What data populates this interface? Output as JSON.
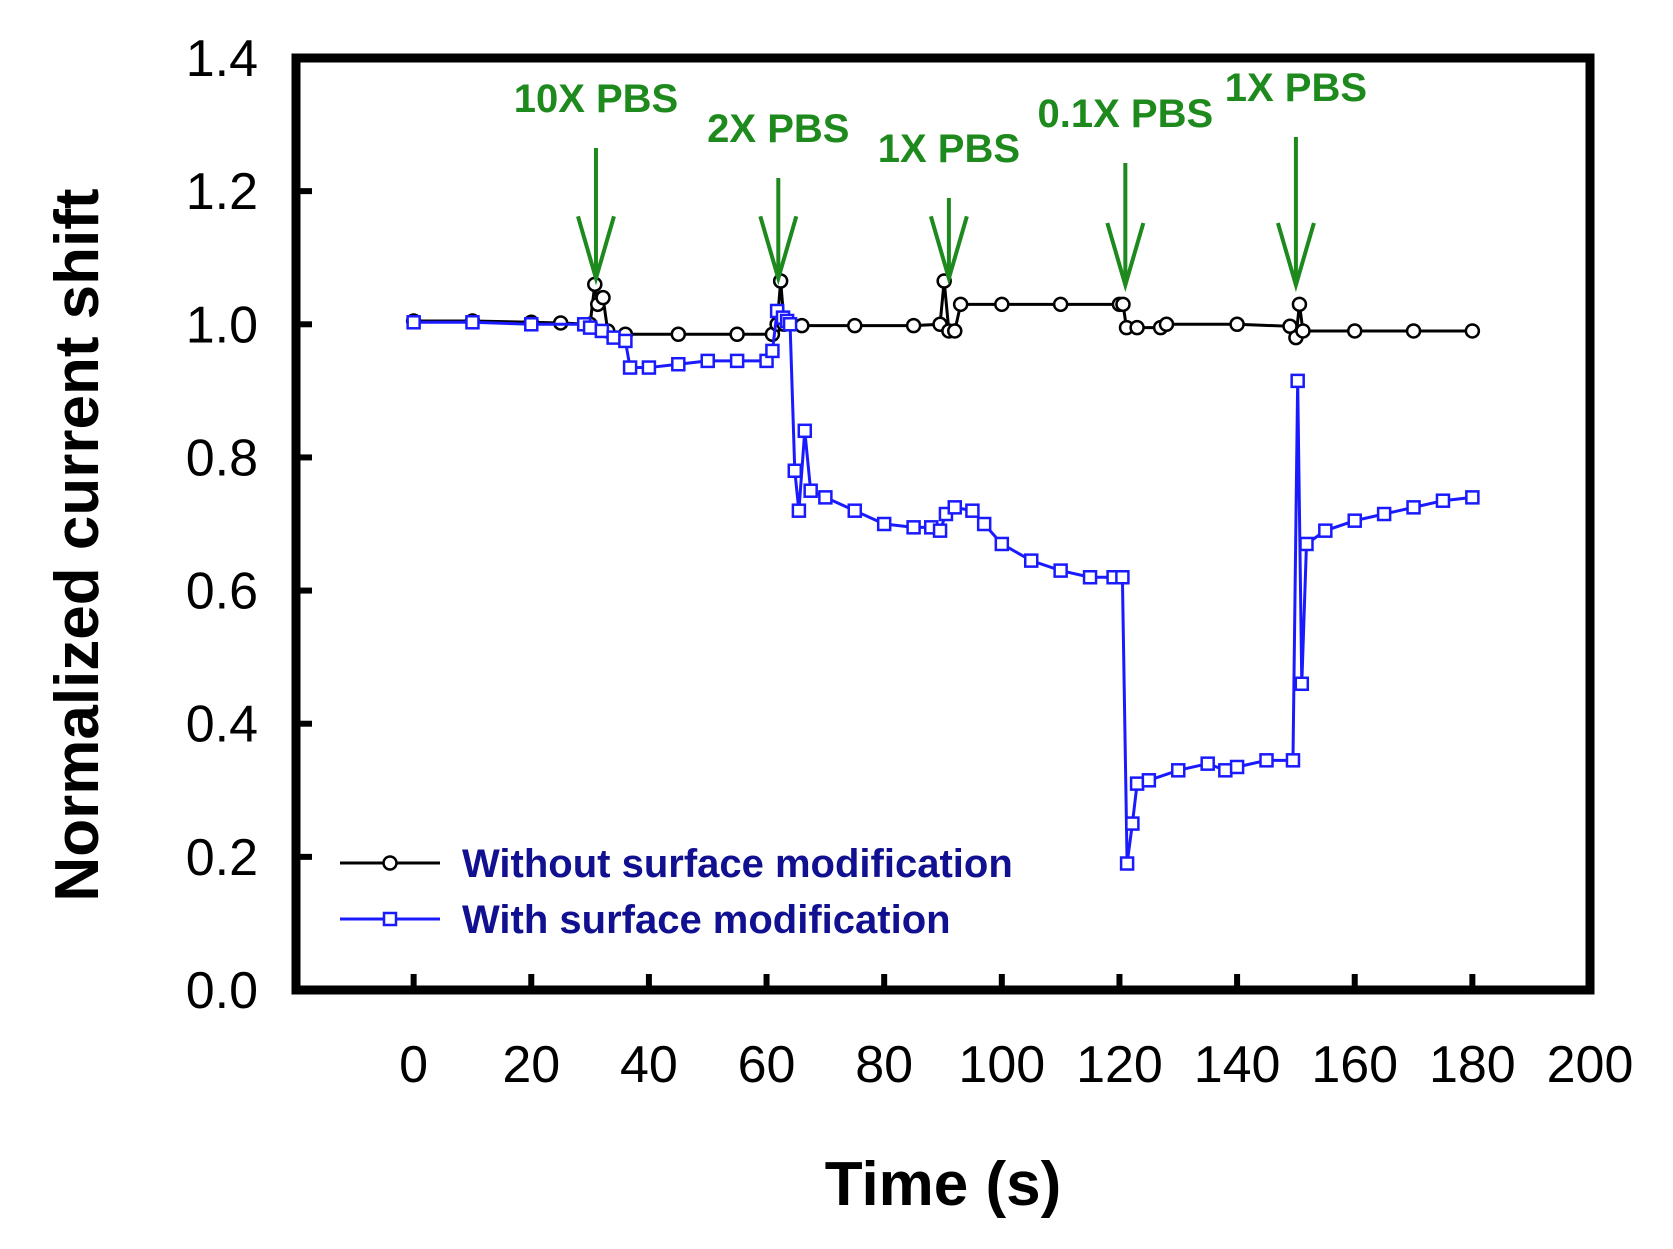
{
  "chart_data": {
    "type": "line",
    "xlabel": "Time (s)",
    "ylabel": "Normalized current shift",
    "xlim": [
      -20,
      200
    ],
    "ylim": [
      0,
      1.4
    ],
    "x_ticks": [
      0,
      20,
      40,
      60,
      80,
      100,
      120,
      140,
      160,
      180,
      200
    ],
    "y_ticks": [
      0.0,
      0.2,
      0.4,
      0.6,
      0.8,
      1.0,
      1.2,
      1.4
    ],
    "y_tick_labels": [
      "0.0",
      "0.2",
      "0.4",
      "0.6",
      "0.8",
      "1.0",
      "1.2",
      "1.4"
    ],
    "grid": false,
    "legend_position": "bottom-left",
    "annotation_color": "#1e8a1e",
    "annotations": [
      {
        "text": "10X PBS",
        "x": 31,
        "y": 1.06
      },
      {
        "text": "2X PBS",
        "x": 62,
        "y": 1.06
      },
      {
        "text": "1X PBS",
        "x": 91,
        "y": 1.06
      },
      {
        "text": "0.1X PBS",
        "x": 121,
        "y": 1.05
      },
      {
        "text": "1X PBS",
        "x": 150,
        "y": 1.05
      }
    ],
    "series": [
      {
        "name": "Without surface modification",
        "color": "#000000",
        "marker": "circle",
        "points": [
          [
            0,
            1.005
          ],
          [
            10,
            1.005
          ],
          [
            20,
            1.003
          ],
          [
            25,
            1.002
          ],
          [
            30,
            1.0
          ],
          [
            30.8,
            1.06
          ],
          [
            31.3,
            1.03
          ],
          [
            32.2,
            1.04
          ],
          [
            33,
            0.99
          ],
          [
            36,
            0.985
          ],
          [
            45,
            0.985
          ],
          [
            55,
            0.985
          ],
          [
            61,
            0.985
          ],
          [
            61.8,
            1.0
          ],
          [
            62.4,
            1.065
          ],
          [
            63,
            1.0
          ],
          [
            66,
            0.998
          ],
          [
            75,
            0.998
          ],
          [
            85,
            0.998
          ],
          [
            89.5,
            1.0
          ],
          [
            90.2,
            1.065
          ],
          [
            91,
            0.99
          ],
          [
            92,
            0.99
          ],
          [
            93,
            1.03
          ],
          [
            100,
            1.03
          ],
          [
            110,
            1.03
          ],
          [
            120,
            1.03
          ],
          [
            120.6,
            1.03
          ],
          [
            121.2,
            0.995
          ],
          [
            123,
            0.995
          ],
          [
            127,
            0.995
          ],
          [
            128,
            1.0
          ],
          [
            140,
            1.0
          ],
          [
            149,
            0.997
          ],
          [
            150,
            0.98
          ],
          [
            150.6,
            1.03
          ],
          [
            151.2,
            0.99
          ],
          [
            160,
            0.99
          ],
          [
            170,
            0.99
          ],
          [
            180,
            0.99
          ]
        ]
      },
      {
        "name": "With surface modification",
        "color": "#1a1aff",
        "marker": "square",
        "points": [
          [
            0,
            1.003
          ],
          [
            10,
            1.003
          ],
          [
            20,
            1.0
          ],
          [
            29,
            1.0
          ],
          [
            30,
            0.995
          ],
          [
            32,
            0.99
          ],
          [
            34,
            0.98
          ],
          [
            36,
            0.975
          ],
          [
            36.8,
            0.935
          ],
          [
            40,
            0.935
          ],
          [
            45,
            0.94
          ],
          [
            50,
            0.945
          ],
          [
            55,
            0.945
          ],
          [
            60,
            0.945
          ],
          [
            61,
            0.96
          ],
          [
            61.8,
            1.02
          ],
          [
            62.8,
            1.01
          ],
          [
            63.5,
            1.005
          ],
          [
            64,
            1.0
          ],
          [
            64.8,
            0.78
          ],
          [
            65.5,
            0.72
          ],
          [
            66.5,
            0.84
          ],
          [
            67.5,
            0.75
          ],
          [
            70,
            0.74
          ],
          [
            75,
            0.72
          ],
          [
            80,
            0.7
          ],
          [
            85,
            0.695
          ],
          [
            88,
            0.695
          ],
          [
            89.5,
            0.69
          ],
          [
            90.5,
            0.715
          ],
          [
            92,
            0.725
          ],
          [
            95,
            0.72
          ],
          [
            97,
            0.7
          ],
          [
            100,
            0.67
          ],
          [
            105,
            0.645
          ],
          [
            110,
            0.63
          ],
          [
            115,
            0.62
          ],
          [
            119,
            0.62
          ],
          [
            120.5,
            0.62
          ],
          [
            121.3,
            0.19
          ],
          [
            122.2,
            0.25
          ],
          [
            123,
            0.31
          ],
          [
            125,
            0.315
          ],
          [
            130,
            0.33
          ],
          [
            135,
            0.34
          ],
          [
            138,
            0.33
          ],
          [
            140,
            0.335
          ],
          [
            145,
            0.345
          ],
          [
            149.5,
            0.345
          ],
          [
            150.3,
            0.915
          ],
          [
            151,
            0.46
          ],
          [
            151.8,
            0.67
          ],
          [
            155,
            0.69
          ],
          [
            160,
            0.705
          ],
          [
            165,
            0.715
          ],
          [
            170,
            0.725
          ],
          [
            175,
            0.735
          ],
          [
            180,
            0.74
          ]
        ]
      }
    ]
  }
}
